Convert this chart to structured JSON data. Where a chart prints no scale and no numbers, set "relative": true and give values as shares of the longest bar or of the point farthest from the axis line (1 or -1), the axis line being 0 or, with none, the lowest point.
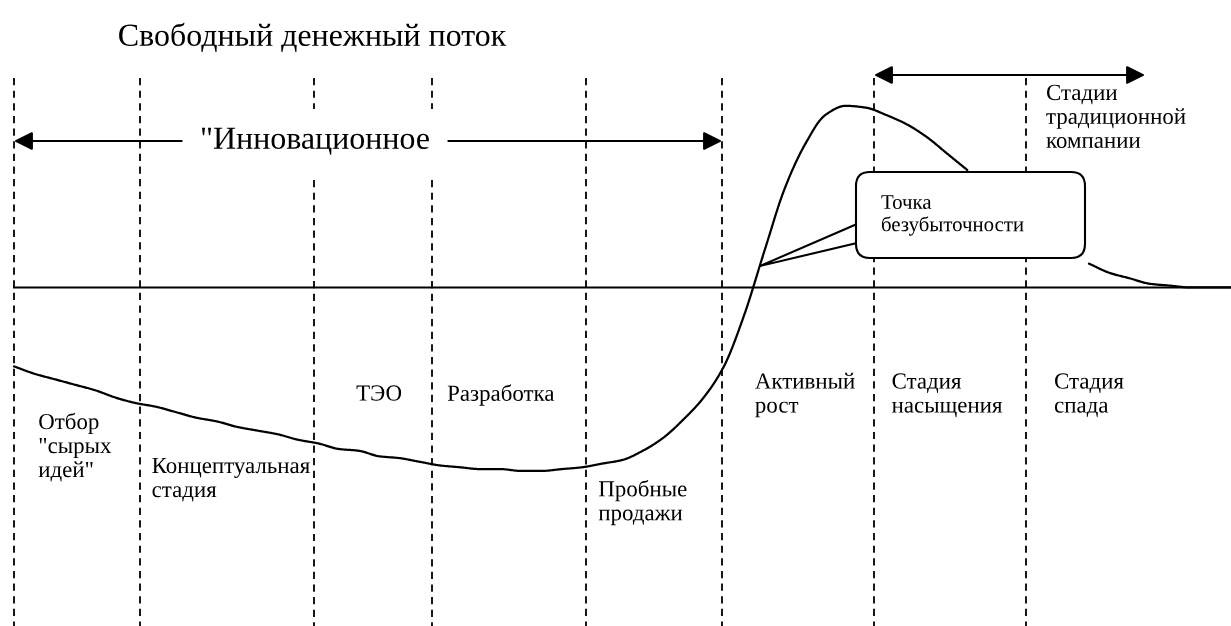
{
  "chart_data": {
    "type": "line",
    "title": "Свободный денежный поток",
    "relative": true,
    "color": "#000000",
    "categories": [
      null,
      null,
      null,
      "Отбор\n\"сырых\nидей\"",
      null,
      null,
      null,
      null,
      null,
      null,
      null,
      "Концептуальная\nстадия",
      null,
      null,
      null,
      null,
      null,
      null,
      "ТЭО",
      null,
      null,
      null,
      null,
      null,
      "Разработка",
      null,
      null,
      null,
      null,
      null,
      null,
      "Пробные\nпродажи",
      null,
      null,
      null,
      null,
      null,
      null,
      null,
      "Активный\nрост",
      null,
      null,
      null,
      null,
      null,
      null,
      "Стадия\nнасыщения",
      null,
      null,
      null,
      null,
      null,
      null,
      "Стадия\nспада",
      null,
      null,
      null,
      null,
      null,
      null,
      null
    ],
    "values": [
      -0.43,
      -0.47,
      -0.5,
      -0.53,
      -0.56,
      -0.6,
      -0.63,
      -0.65,
      -0.68,
      -0.71,
      -0.73,
      -0.76,
      -0.78,
      -0.8,
      -0.83,
      -0.85,
      -0.88,
      -0.89,
      -0.92,
      -0.93,
      -0.95,
      -0.97,
      -0.98,
      -0.99,
      -0.99,
      -1.0,
      -1.0,
      -0.99,
      -0.98,
      -0.96,
      -0.94,
      -0.89,
      -0.82,
      -0.72,
      -0.6,
      -0.43,
      -0.15,
      0.2,
      0.54,
      0.78,
      0.94,
      0.99,
      0.98,
      0.94,
      0.89,
      0.82,
      0.73,
      0.64,
      null,
      null,
      null,
      null,
      null,
      0.13,
      0.08,
      0.05,
      0.02,
      0.01,
      0,
      0,
      0
    ],
    "annotations": [
      "\"Инновационное",
      "Стадии\nтрадиционной\nкомпании",
      "Точка\nбезубыточности"
    ]
  }
}
